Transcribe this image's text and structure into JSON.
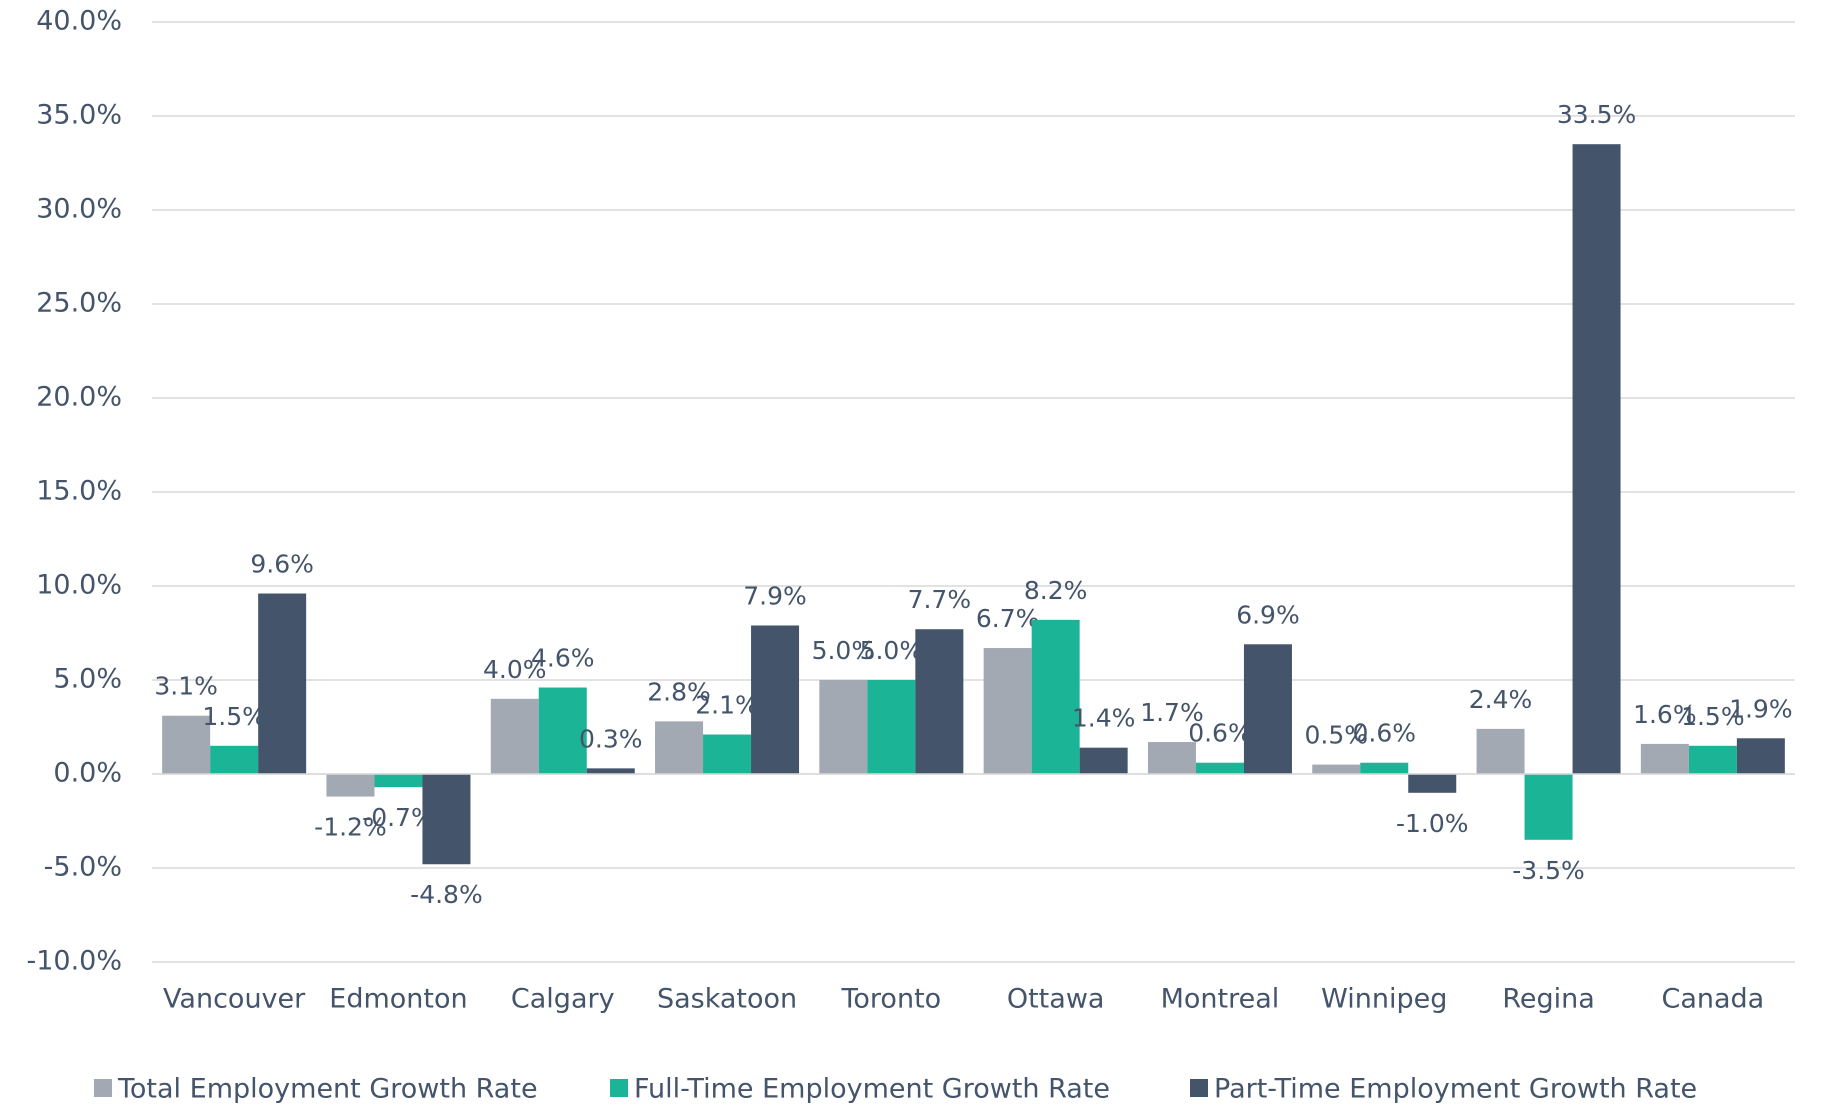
{
  "chart_data": {
    "type": "bar",
    "categories": [
      "Vancouver",
      "Edmonton",
      "Calgary",
      "Saskatoon",
      "Toronto",
      "Ottawa",
      "Montreal",
      "Winnipeg",
      "Regina",
      "Canada"
    ],
    "series": [
      {
        "name": "Total Employment Growth Rate",
        "color": "#a2a9b3",
        "values": [
          3.1,
          -1.2,
          4.0,
          2.8,
          5.0,
          6.7,
          1.7,
          0.5,
          2.4,
          1.6
        ],
        "value_labels": [
          "3.1%",
          "-1.2%",
          "4.0%",
          "2.8%",
          "5.0%",
          "6.7%",
          "1.7%",
          "0.5%",
          "2.4%",
          "1.6%"
        ]
      },
      {
        "name": "Full-Time Employment Growth Rate",
        "color": "#1bb496",
        "values": [
          1.5,
          -0.7,
          4.6,
          2.1,
          5.0,
          8.2,
          0.6,
          0.6,
          -3.5,
          1.5
        ],
        "value_labels": [
          "1.5%",
          "-0.7%",
          "4.6%",
          "2.1%",
          "5.0%",
          "8.2%",
          "0.6%",
          "0.6%",
          "-3.5%",
          "1.5%"
        ]
      },
      {
        "name": "Part-Time Employment Growth Rate",
        "color": "#44546a",
        "values": [
          9.6,
          -4.8,
          0.3,
          7.9,
          7.7,
          1.4,
          6.9,
          -1.0,
          33.5,
          1.9
        ],
        "value_labels": [
          "9.6%",
          "-4.8%",
          "0.3%",
          "7.9%",
          "7.7%",
          "1.4%",
          "6.9%",
          "-1.0%",
          "33.5%",
          "1.9%"
        ]
      }
    ],
    "ylim": [
      -10,
      40
    ],
    "yticks": [
      {
        "value": -10,
        "label": "-10.0%"
      },
      {
        "value": -5,
        "label": "-5.0%"
      },
      {
        "value": 0,
        "label": "0.0%"
      },
      {
        "value": 5,
        "label": "5.0%"
      },
      {
        "value": 10,
        "label": "10.0%"
      },
      {
        "value": 15,
        "label": "15.0%"
      },
      {
        "value": 20,
        "label": "20.0%"
      },
      {
        "value": 25,
        "label": "25.0%"
      },
      {
        "value": 30,
        "label": "30.0%"
      },
      {
        "value": 35,
        "label": "35.0%"
      },
      {
        "value": 40,
        "label": "40.0%"
      }
    ],
    "grid": true,
    "legend": "bottom"
  }
}
